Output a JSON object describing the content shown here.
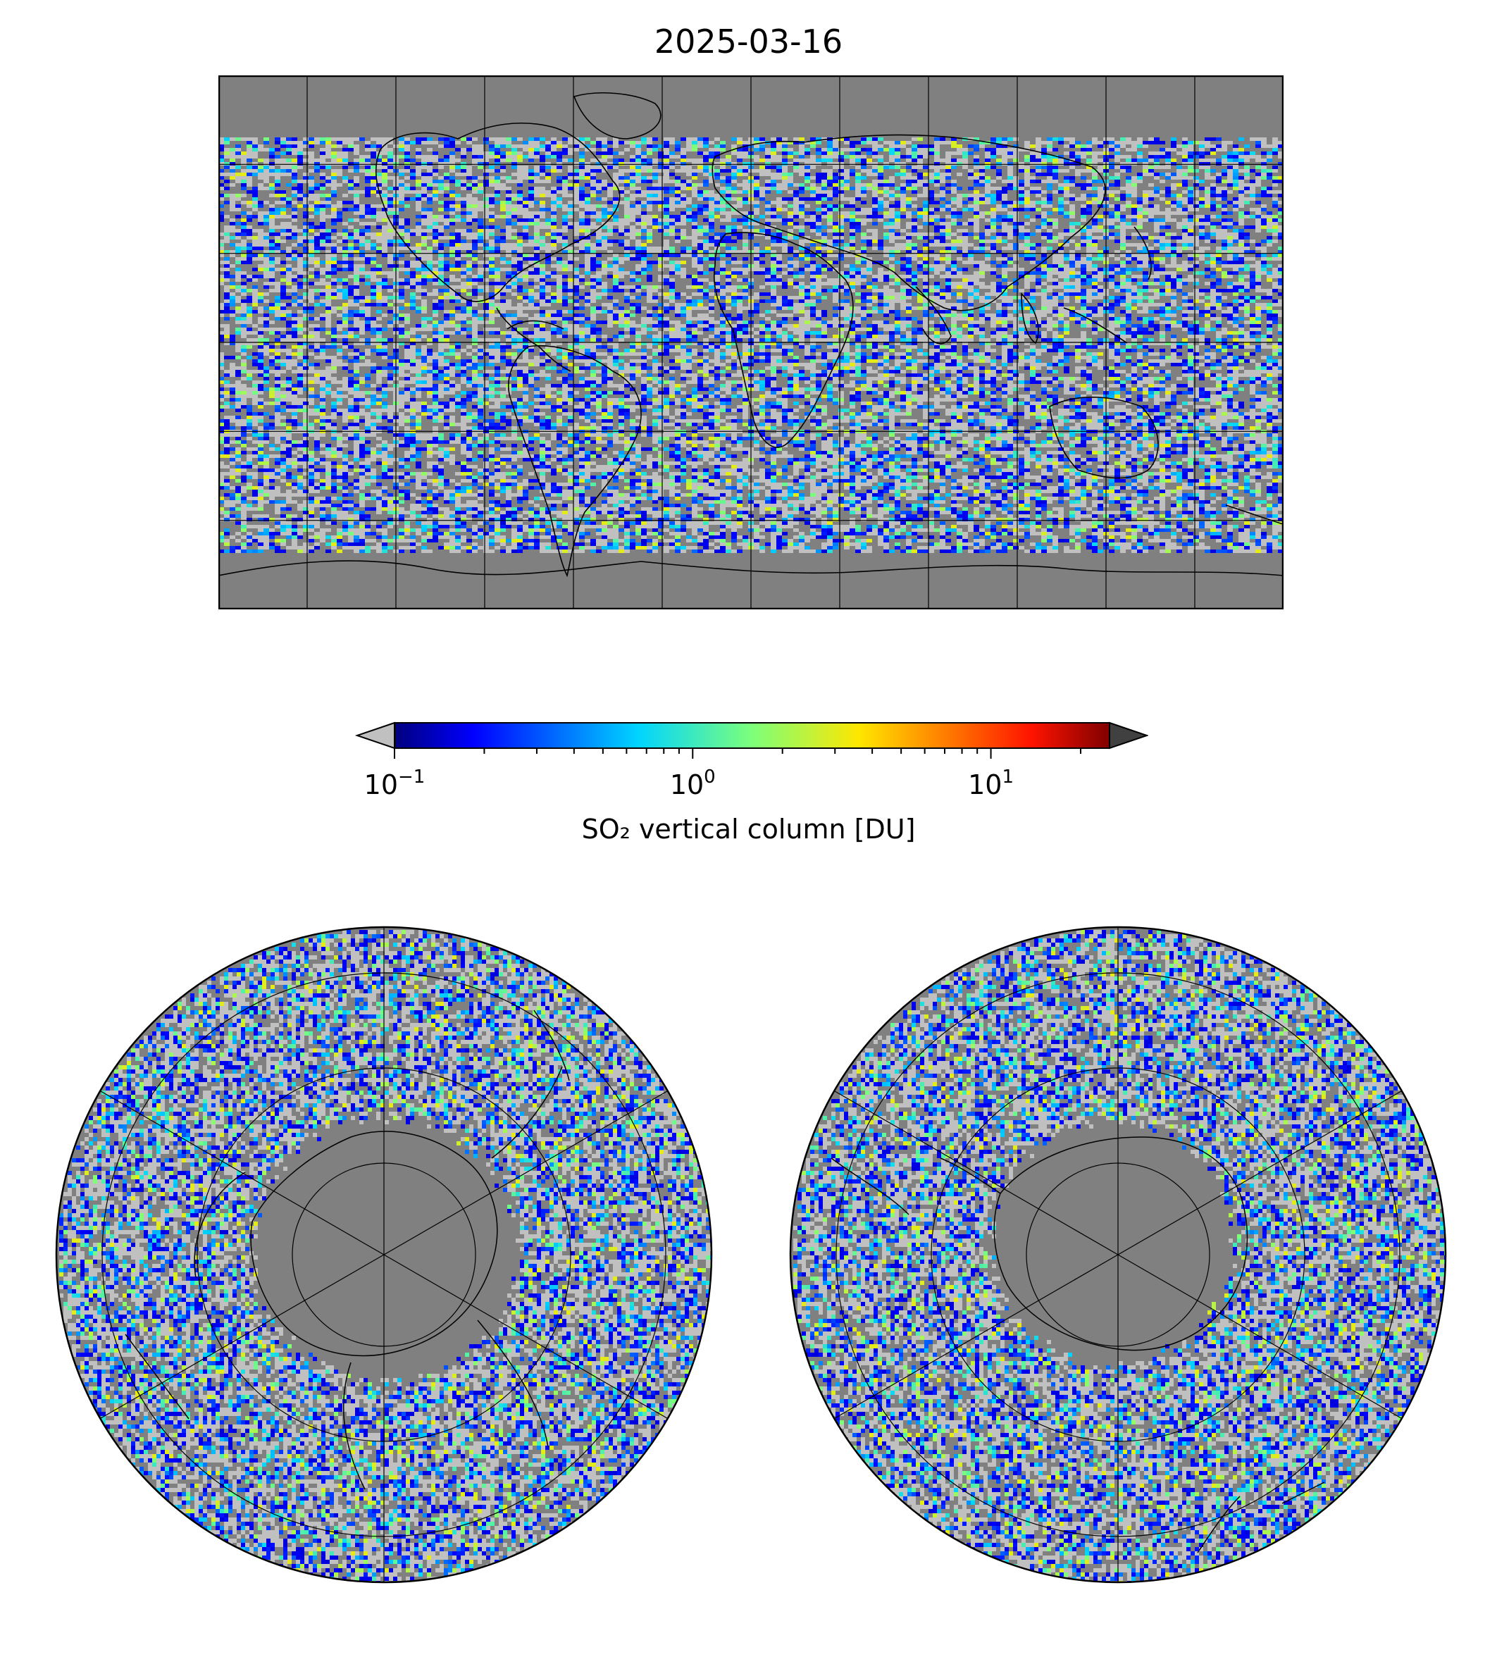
{
  "title": "2025-03-16",
  "colorbar": {
    "label": "SO₂ vertical column [DU]",
    "scale": "log",
    "range": [
      0.1,
      25
    ],
    "colormap": "jet",
    "under_color": "#c0c0c0",
    "over_color": "#404040",
    "extend": "both",
    "ticks": [
      {
        "value": 0.1,
        "base": "10",
        "exp": "−1"
      },
      {
        "value": 1,
        "base": "10",
        "exp": "0"
      },
      {
        "value": 10,
        "base": "10",
        "exp": "1"
      }
    ]
  },
  "maps": {
    "global": {
      "projection": "equirectangular",
      "lon_range": [
        -180,
        180
      ],
      "lat_range": [
        -90,
        90
      ],
      "lon_grid_step": 30,
      "lat_grid_step": 30
    },
    "north": {
      "projection": "north polar azimuthal",
      "pole": "north"
    },
    "south": {
      "projection": "south polar azimuthal",
      "pole": "south"
    }
  },
  "colors": {
    "no_data": "#808080",
    "below_min": "#c0c0c0",
    "coast": "#000000",
    "grid": "#000000"
  }
}
